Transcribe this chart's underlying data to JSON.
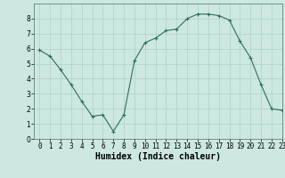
{
  "x": [
    0,
    1,
    2,
    3,
    4,
    5,
    6,
    7,
    8,
    9,
    10,
    11,
    12,
    13,
    14,
    15,
    16,
    17,
    18,
    19,
    20,
    21,
    22,
    23
  ],
  "y": [
    5.9,
    5.5,
    4.6,
    3.6,
    2.5,
    1.5,
    1.6,
    0.5,
    1.6,
    5.2,
    6.4,
    6.7,
    7.2,
    7.3,
    8.0,
    8.3,
    8.3,
    8.2,
    7.9,
    6.5,
    5.4,
    3.6,
    2.0,
    1.9
  ],
  "xlabel": "Humidex (Indice chaleur)",
  "ylim": [
    0,
    9
  ],
  "xlim": [
    -0.5,
    23
  ],
  "yticks": [
    0,
    1,
    2,
    3,
    4,
    5,
    6,
    7,
    8
  ],
  "xticks": [
    0,
    1,
    2,
    3,
    4,
    5,
    6,
    7,
    8,
    9,
    10,
    11,
    12,
    13,
    14,
    15,
    16,
    17,
    18,
    19,
    20,
    21,
    22,
    23
  ],
  "line_color": "#2e6e5e",
  "marker": "+",
  "bg_color": "#cce8e0",
  "grid_color": "#b0d0c8",
  "tick_fontsize": 5.5,
  "xlabel_fontsize": 7,
  "linewidth": 0.8,
  "markersize": 3,
  "markeredgewidth": 0.8
}
